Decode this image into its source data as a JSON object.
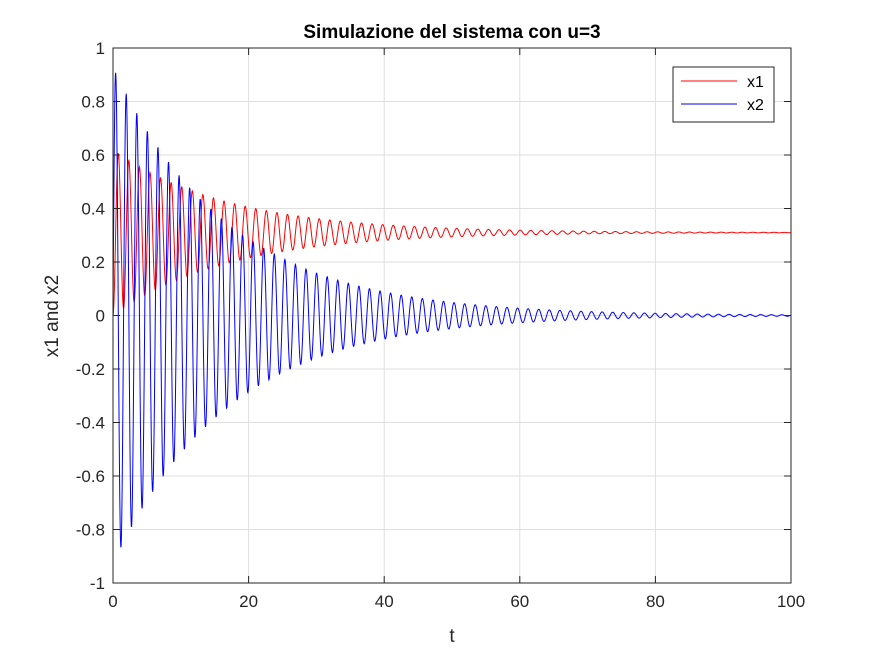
{
  "chart_data": {
    "type": "line",
    "title": "Simulazione del sistema con u=3",
    "xlabel": "t",
    "ylabel": "x1 and x2",
    "xlim": [
      0,
      100
    ],
    "ylim": [
      -1,
      1
    ],
    "xticks": [
      0,
      20,
      40,
      60,
      80,
      100
    ],
    "xtick_labels": [
      "0",
      "20",
      "40",
      "60",
      "80",
      "100"
    ],
    "yticks": [
      -1,
      -0.8,
      -0.6,
      -0.4,
      -0.2,
      0,
      0.2,
      0.4,
      0.6,
      0.8,
      1
    ],
    "ytick_labels": [
      "-1",
      "-0.8",
      "-0.6",
      "-0.4",
      "-0.2",
      "0",
      "0.2",
      "0.4",
      "0.6",
      "0.8",
      "1"
    ],
    "grid": true,
    "legend_position": "top-right",
    "series": [
      {
        "name": "x1",
        "color": "#ff0000",
        "description_of_shape": "damped oscillation settling to about 0.31",
        "x": [
          0,
          0.7,
          1.5,
          2.2,
          3.0,
          3.7,
          4.5,
          5.2,
          6.0,
          6.7,
          7.5,
          8.2,
          9.0,
          9.7,
          10.5,
          11.2,
          12.0,
          12.7,
          13.5,
          14.2,
          15.0,
          15.7,
          16.5,
          17.2,
          18.0,
          18.7,
          19.5,
          20.2,
          21.0,
          21.7,
          22.5,
          23.2,
          24.0,
          24.7,
          25.5,
          26.2,
          27.0,
          27.7,
          28.5,
          29.2,
          30.0,
          32.0,
          35.0,
          40.0,
          45.0,
          50.0,
          55.0,
          60.0,
          70.0,
          80.0,
          90.0,
          100.0
        ],
        "values": [
          0,
          0.61,
          0.02,
          0.6,
          0.05,
          0.58,
          0.07,
          0.57,
          0.09,
          0.55,
          0.11,
          0.53,
          0.13,
          0.52,
          0.14,
          0.5,
          0.16,
          0.49,
          0.17,
          0.47,
          0.18,
          0.46,
          0.19,
          0.45,
          0.2,
          0.44,
          0.21,
          0.43,
          0.22,
          0.42,
          0.23,
          0.41,
          0.23,
          0.4,
          0.24,
          0.4,
          0.25,
          0.39,
          0.25,
          0.38,
          0.26,
          0.37,
          0.36,
          0.34,
          0.33,
          0.33,
          0.32,
          0.32,
          0.315,
          0.313,
          0.312,
          0.312
        ]
      },
      {
        "name": "x2",
        "color": "#0000ff",
        "description_of_shape": "damped oscillation settling to about 0",
        "x": [
          0,
          0.8,
          1.6,
          3.0,
          4.6,
          6.0,
          7.6,
          9.0,
          10.6,
          12.0,
          13.6,
          15.0,
          16.6,
          18.0,
          19.6,
          21.0,
          22.6,
          24.0,
          25.6,
          27.0,
          28.6,
          30.0,
          31.6,
          35.0,
          40.0,
          45.0,
          50.0,
          55.0,
          60.0,
          70.0,
          80.0,
          90.0,
          100.0
        ],
        "values": [
          0,
          0.93,
          -0.88,
          0.84,
          0.76,
          0.68,
          0.62,
          0.56,
          0.51,
          0.46,
          0.42,
          0.38,
          0.35,
          0.32,
          0.29,
          0.26,
          0.24,
          0.22,
          0.2,
          0.18,
          0.17,
          0.15,
          0.14,
          0.11,
          0.08,
          0.06,
          0.045,
          0.035,
          0.025,
          0.015,
          0.01,
          0.006,
          0.005
        ],
        "negative_peaks": [
          -0.88,
          -0.8,
          -0.72,
          -0.65,
          -0.58,
          -0.53,
          -0.48,
          -0.43,
          -0.39,
          -0.35,
          -0.32,
          -0.29,
          -0.26,
          -0.24,
          -0.22,
          -0.2
        ]
      }
    ]
  }
}
